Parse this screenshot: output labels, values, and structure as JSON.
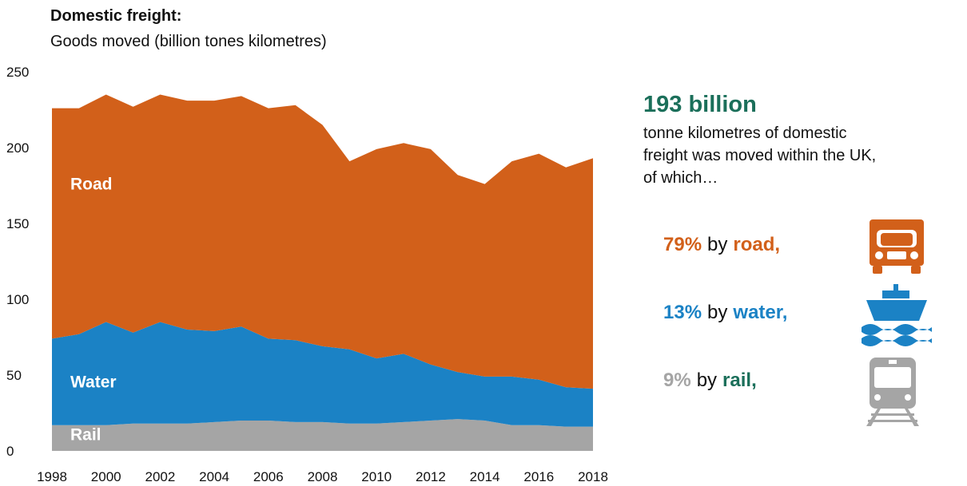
{
  "chart_data": {
    "type": "area",
    "stacked": true,
    "title": "Domestic freight:",
    "subtitle": "Goods moved (billion tones kilometres)",
    "x": [
      1998,
      1999,
      2000,
      2001,
      2002,
      2003,
      2004,
      2005,
      2006,
      2007,
      2008,
      2009,
      2010,
      2011,
      2012,
      2013,
      2014,
      2015,
      2016,
      2017,
      2018
    ],
    "xlim": [
      1998,
      2018
    ],
    "xticks": [
      1998,
      2000,
      2002,
      2004,
      2006,
      2008,
      2010,
      2012,
      2014,
      2016,
      2018
    ],
    "ylim": [
      0,
      250
    ],
    "yticks": [
      0,
      50,
      100,
      150,
      200,
      250
    ],
    "series": [
      {
        "name": "Rail",
        "color": "#a5a5a5",
        "values": [
          17,
          17,
          17,
          18,
          18,
          18,
          19,
          20,
          20,
          19,
          19,
          18,
          18,
          19,
          20,
          21,
          20,
          17,
          17,
          16,
          16
        ]
      },
      {
        "name": "Water",
        "color": "#1b82c5",
        "values": [
          57,
          60,
          68,
          60,
          67,
          62,
          60,
          62,
          54,
          54,
          50,
          49,
          43,
          45,
          37,
          31,
          29,
          32,
          30,
          26,
          25
        ]
      },
      {
        "name": "Road",
        "color": "#d2601a",
        "values": [
          152,
          149,
          150,
          149,
          150,
          151,
          152,
          152,
          152,
          155,
          146,
          124,
          138,
          139,
          142,
          130,
          127,
          142,
          149,
          145,
          152
        ]
      }
    ]
  },
  "panel": {
    "headline": "193 billion",
    "description": [
      "tonne kilometres of domestic",
      "freight was moved within the UK,",
      "of which…"
    ],
    "items": [
      {
        "pct": "79%",
        "by": "by",
        "mode": "road,",
        "pct_color": "#d2601a",
        "mode_color": "#d2601a"
      },
      {
        "pct": "13%",
        "by": "by",
        "mode": "water,",
        "pct_color": "#1b82c5",
        "mode_color": "#1b82c5"
      },
      {
        "pct": "9%",
        "by": "by",
        "mode": "rail,",
        "pct_color": "#a5a5a5",
        "mode_color": "#1b6f5a"
      }
    ]
  }
}
